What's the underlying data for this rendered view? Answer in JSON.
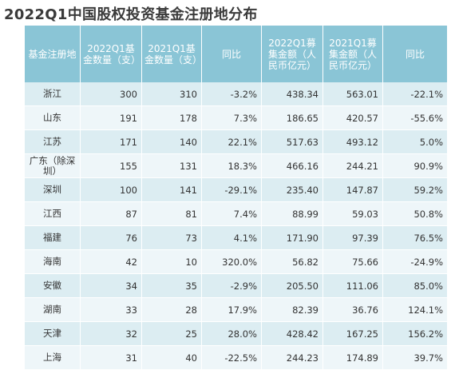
{
  "title": "2022Q1中国股权投资基金注册地分布",
  "headers": [
    "基金注册地",
    "2022Q1基金数量（支）",
    "2021Q1基金数量（支）",
    "同比",
    "2022Q1募集金额（人民币亿元）",
    "2021Q1募集金额（人民币亿元）",
    "同比"
  ],
  "rows": [
    [
      "浙江",
      "300",
      "310",
      "-3.2%",
      "438.34",
      "563.01",
      "-22.1%"
    ],
    [
      "山东",
      "191",
      "178",
      "7.3%",
      "186.65",
      "420.57",
      "-55.6%"
    ],
    [
      "江苏",
      "171",
      "140",
      "22.1%",
      "517.63",
      "493.12",
      "5.0%"
    ],
    [
      "广东（除深圳）",
      "155",
      "131",
      "18.3%",
      "466.16",
      "244.21",
      "90.9%"
    ],
    [
      "深圳",
      "100",
      "141",
      "-29.1%",
      "235.40",
      "147.87",
      "59.2%"
    ],
    [
      "江西",
      "87",
      "81",
      "7.4%",
      "88.99",
      "59.03",
      "50.8%"
    ],
    [
      "福建",
      "76",
      "73",
      "4.1%",
      "171.90",
      "97.39",
      "76.5%"
    ],
    [
      "海南",
      "42",
      "10",
      "320.0%",
      "56.82",
      "75.66",
      "-24.9%"
    ],
    [
      "安徽",
      "34",
      "35",
      "-2.9%",
      "205.50",
      "111.06",
      "85.0%"
    ],
    [
      "湖南",
      "33",
      "28",
      "17.9%",
      "82.39",
      "36.76",
      "124.1%"
    ],
    [
      "天津",
      "32",
      "25",
      "28.0%",
      "428.42",
      "167.25",
      "156.2%"
    ],
    [
      "上海",
      "31",
      "40",
      "-22.5%",
      "244.23",
      "174.89",
      "39.7%"
    ]
  ],
  "colors": {
    "header_bg": "#8ac5d6",
    "row_odd": "#dcedf2",
    "row_even": "#eef6f9",
    "title": "#3a3a3a"
  }
}
